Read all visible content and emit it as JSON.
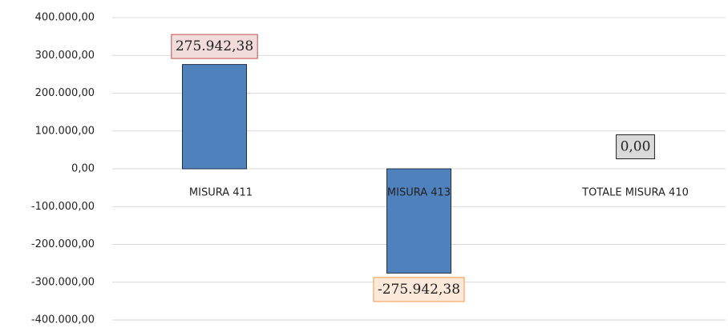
{
  "chart_data": {
    "type": "bar",
    "categories": [
      "MISURA 411",
      "MISURA 413",
      "TOTALE MISURA 410"
    ],
    "values": [
      275942.38,
      -275942.38,
      0
    ],
    "value_labels": [
      "275.942,38",
      "-275.942,38",
      "0,00"
    ],
    "color": "#4f81bd",
    "label_colors": [
      "#f2dcdb",
      "#fde9d9",
      "#d9d9d9"
    ],
    "ylim": [
      -400000,
      400000
    ],
    "yticks": [
      {
        "value": -400000,
        "label": "-400.000,00"
      },
      {
        "value": -300000,
        "label": "-300.000,00"
      },
      {
        "value": -200000,
        "label": "-200.000,00"
      },
      {
        "value": -100000,
        "label": "-100.000,00"
      },
      {
        "value": 0,
        "label": "0,00"
      },
      {
        "value": 100000,
        "label": "100.000,00"
      },
      {
        "value": 200000,
        "label": "200.000,00"
      },
      {
        "value": 300000,
        "label": "300.000,00"
      },
      {
        "value": 400000,
        "label": "400.000,00"
      }
    ],
    "grid": true
  }
}
